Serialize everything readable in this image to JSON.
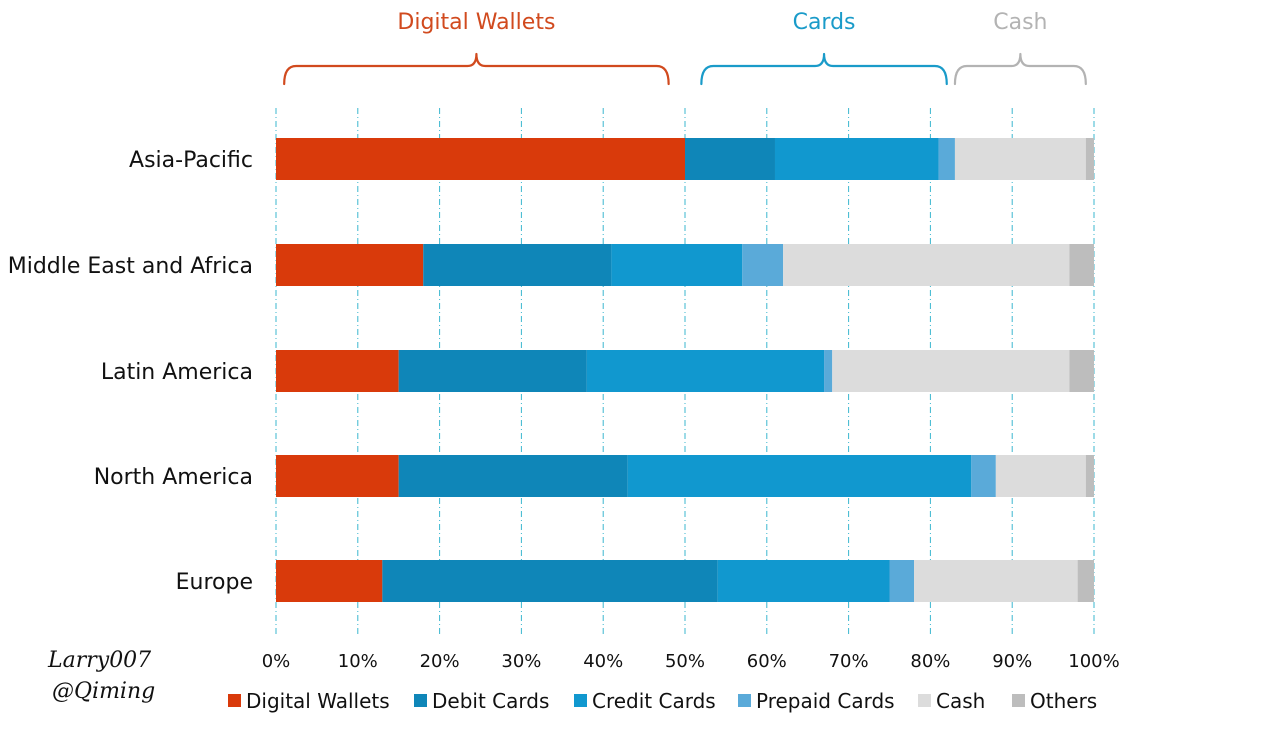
{
  "chart_data": {
    "type": "bar",
    "orientation": "horizontal",
    "stacked": true,
    "categories": [
      "Asia-Pacific",
      "Middle East and Africa",
      "Latin America",
      "North America",
      "Europe"
    ],
    "series": [
      {
        "name": "Digital Wallets",
        "color": "#d93a0b",
        "values": [
          50,
          18,
          15,
          15,
          13
        ]
      },
      {
        "name": "Debit Cards",
        "color": "#0f86b8",
        "values": [
          11,
          23,
          23,
          28,
          41
        ]
      },
      {
        "name": "Credit Cards",
        "color": "#1198cf",
        "values": [
          20,
          16,
          29,
          42,
          21
        ]
      },
      {
        "name": "Prepaid Cards",
        "color": "#5aaad9",
        "values": [
          2,
          5,
          1,
          3,
          3
        ]
      },
      {
        "name": "Cash",
        "color": "#dcdcdc",
        "values": [
          16,
          35,
          29,
          11,
          20
        ]
      },
      {
        "name": "Others",
        "color": "#bdbdbd",
        "values": [
          1,
          3,
          3,
          1,
          2
        ]
      }
    ],
    "xlim": [
      0,
      100
    ],
    "xticks": [
      "0%",
      "10%",
      "20%",
      "30%",
      "40%",
      "50%",
      "60%",
      "70%",
      "80%",
      "90%",
      "100%"
    ],
    "grid": "vertical dash-dot, cyan",
    "legend": "bottom",
    "groups": [
      {
        "label": "Digital Wallets",
        "from": 1,
        "to": 48,
        "color": "#d14a1e"
      },
      {
        "label": "Cards",
        "from": 52,
        "to": 82,
        "color": "#1a9bc9"
      },
      {
        "label": "Cash",
        "from": 83,
        "to": 99,
        "color": "#b3b3b3"
      }
    ]
  },
  "signature": [
    "Larry007",
    "@Qiming"
  ]
}
